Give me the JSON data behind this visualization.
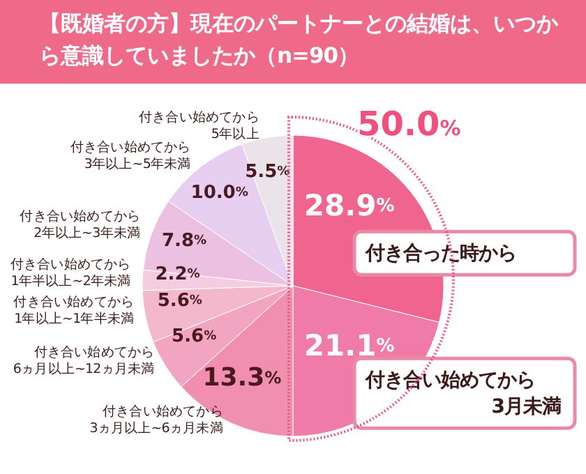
{
  "chart_data": {
    "type": "pie",
    "title": "【既婚者の方】現在のパートナーとの結婚は、いつから意識していましたか（n=90）",
    "categories": [
      "付き合った時から",
      "付き合い始めてから\n3月未満",
      "付き合い始めてから\n3ヵ月以上~6ヵ月未満",
      "付き合い始めてから\n6ヵ月以上~12ヵ月未満",
      "付き合い始めてから\n1年以上~1年半未満",
      "付き合い始めてから\n1年半以上~2年未満",
      "付き合い始めてから\n2年以上~3年未満",
      "付き合い始めてから\n3年以上~5年未満",
      "付き合い始めてから\n5年以上"
    ],
    "values": [
      28.9,
      21.1,
      13.3,
      5.6,
      5.6,
      2.2,
      7.8,
      10.0,
      5.5
    ],
    "value_labels": [
      "28.9%",
      "21.1%",
      "13.3%",
      "5.6%",
      "5.6%",
      "2.2%",
      "7.8%",
      "10.0%",
      "5.5%"
    ],
    "colors": [
      "#ef6590",
      "#f07aa8",
      "#f08fb0",
      "#f2a5c0",
      "#f4b8cc",
      "#f5cde0",
      "#ecc0e0",
      "#e6cff0",
      "#ebe3ea"
    ],
    "annotations": [
      "50.0%"
    ]
  }
}
